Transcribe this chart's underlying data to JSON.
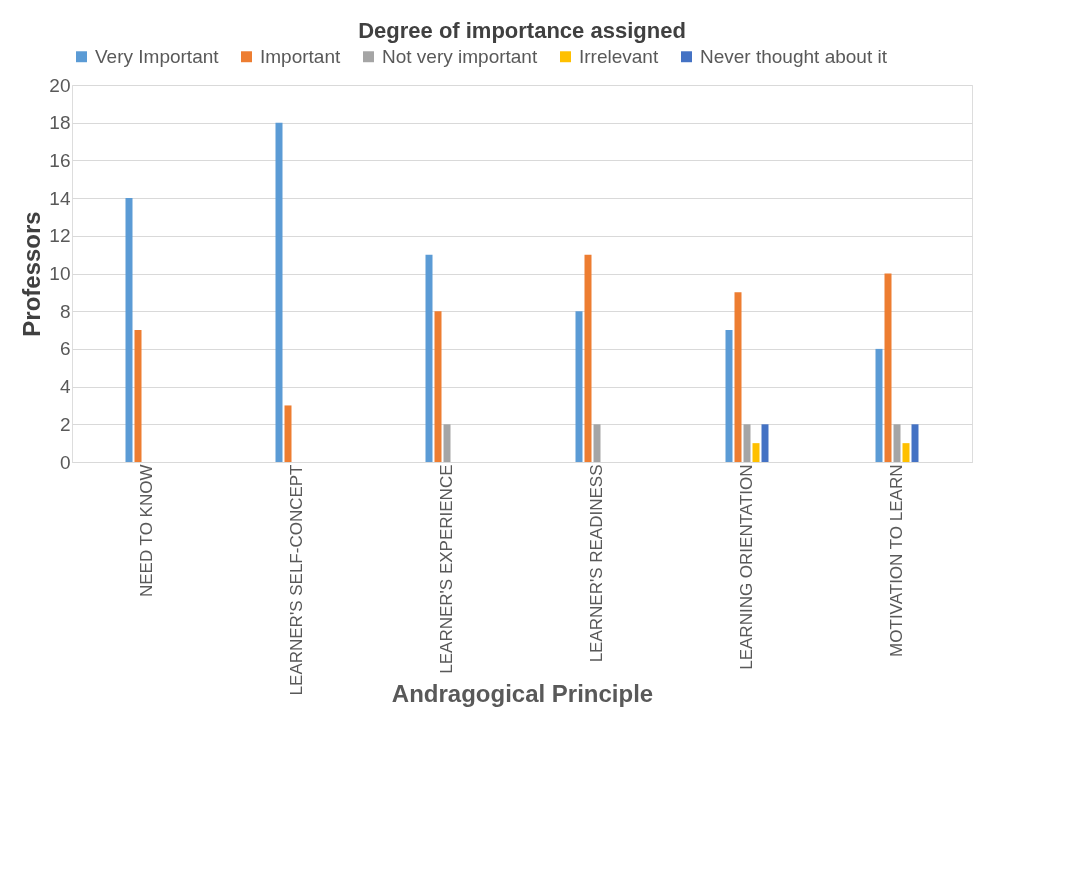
{
  "chart_data": {
    "type": "bar",
    "title": "Degree of importance assigned",
    "xlabel": "Andragogical Principle",
    "ylabel": "Professors",
    "categories": [
      "NEED TO KNOW",
      "LEARNER'S SELF-CONCEPT",
      "LEARNER'S EXPERIENCE",
      "LEARNER'S READINESS",
      "LEARNING ORIENTATION",
      "MOTIVATION TO LEARN"
    ],
    "series": [
      {
        "name": "Very Important",
        "color": "#5b9bd5",
        "values": [
          14,
          18,
          11,
          8,
          7,
          6
        ]
      },
      {
        "name": "Important",
        "color": "#ed7d31",
        "values": [
          7,
          3,
          8,
          11,
          9,
          10
        ]
      },
      {
        "name": "Not very important",
        "color": "#a5a5a5",
        "values": [
          0,
          0,
          2,
          2,
          2,
          2
        ]
      },
      {
        "name": "Irrelevant",
        "color": "#ffc000",
        "values": [
          0,
          0,
          0,
          0,
          1,
          1
        ]
      },
      {
        "name": "Never thought about it",
        "color": "#4472c4",
        "values": [
          0,
          0,
          0,
          0,
          2,
          2
        ]
      }
    ],
    "ylim": [
      0,
      20
    ],
    "yticks": [
      0,
      2,
      4,
      6,
      8,
      10,
      12,
      14,
      16,
      18,
      20
    ],
    "grid": "y",
    "legend": "top"
  }
}
